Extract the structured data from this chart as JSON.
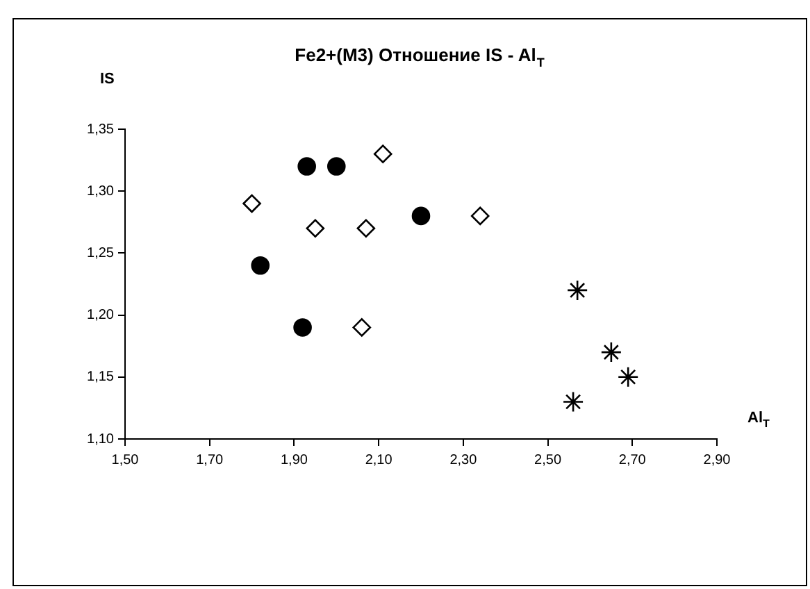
{
  "chart_data": {
    "type": "scatter",
    "title": "Fe2+(M3) Отношение IS - Al$_{T}$",
    "xlabel": "Al$_{T}$",
    "ylabel": "IS",
    "xlim": [
      1.5,
      2.9
    ],
    "xticks": [
      {
        "value": 1.5,
        "label": "1,50"
      },
      {
        "value": 1.7,
        "label": "1,70"
      },
      {
        "value": 1.9,
        "label": "1,90"
      },
      {
        "value": 2.1,
        "label": "2,10"
      },
      {
        "value": 2.3,
        "label": "2,30"
      },
      {
        "value": 2.5,
        "label": "2,50"
      },
      {
        "value": 2.7,
        "label": "2,70"
      },
      {
        "value": 2.9,
        "label": "2,90"
      }
    ],
    "ylim": [
      1.1,
      1.35
    ],
    "yticks": [
      {
        "value": 1.1,
        "label": "1,10"
      },
      {
        "value": 1.15,
        "label": "1,15"
      },
      {
        "value": 1.2,
        "label": "1,20"
      },
      {
        "value": 1.25,
        "label": "1,25"
      },
      {
        "value": 1.3,
        "label": "1,30"
      },
      {
        "value": 1.35,
        "label": "1,35"
      }
    ],
    "grid": false,
    "legend": false,
    "series": [
      {
        "color": "#000000",
        "marker": "circle",
        "x": [
          1.93,
          2.0,
          1.82,
          1.92,
          2.2
        ],
        "values": [
          1.32,
          1.32,
          1.24,
          1.19,
          1.28
        ]
      },
      {
        "color": "#000000",
        "marker": "diamond",
        "x": [
          1.8,
          1.95,
          2.07,
          2.11,
          2.06,
          2.34
        ],
        "values": [
          1.29,
          1.27,
          1.27,
          1.33,
          1.19,
          1.28
        ]
      },
      {
        "color": "#000000",
        "marker": "cross",
        "x": [
          2.57,
          2.65,
          2.69,
          2.56
        ],
        "values": [
          1.22,
          1.17,
          1.15,
          1.13
        ]
      }
    ]
  }
}
